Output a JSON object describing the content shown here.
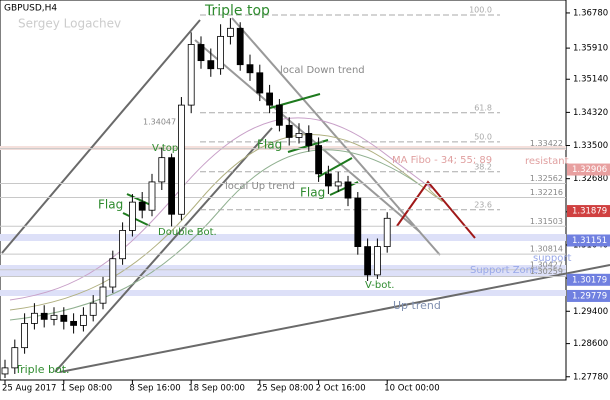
{
  "chart_data": {
    "type": "candlestick",
    "title": "GBPUSD,H4",
    "subtitle": "Sergey Logachev",
    "categories": [
      "25 Aug 2017",
      null,
      null,
      null,
      null,
      null,
      "1 Sep 08:00",
      null,
      null,
      null,
      null,
      null,
      null,
      "8 Sep 16:00",
      null,
      null,
      null,
      null,
      null,
      "18 Sep 00:00",
      null,
      null,
      null,
      null,
      null,
      null,
      "25 Sep 08:00",
      null,
      null,
      null,
      null,
      null,
      "2 Oct 16:00",
      null,
      null,
      null,
      null,
      null,
      null,
      "10 Oct 00:00"
    ],
    "open": [
      1.2785,
      1.28,
      1.285,
      1.291,
      1.2935,
      1.292,
      1.293,
      1.2915,
      1.2905,
      1.293,
      1.296,
      1.3,
      1.307,
      1.314,
      1.321,
      1.319,
      1.326,
      1.332,
      1.318,
      1.345,
      1.36,
      1.356,
      1.354,
      1.362,
      1.364,
      1.355,
      1.353,
      1.348,
      1.345,
      1.34,
      1.337,
      1.338,
      1.335,
      1.328,
      1.325,
      1.326,
      1.322,
      1.31,
      1.303,
      1.31
    ],
    "high": [
      1.282,
      1.287,
      1.2935,
      1.296,
      1.2955,
      1.295,
      1.295,
      1.2935,
      1.295,
      1.298,
      1.3025,
      1.309,
      1.316,
      1.323,
      1.3235,
      1.328,
      1.3345,
      1.333,
      1.347,
      1.363,
      1.362,
      1.359,
      1.365,
      1.3665,
      1.3655,
      1.3575,
      1.355,
      1.35,
      1.3465,
      1.342,
      1.3405,
      1.34,
      1.337,
      1.33,
      1.3285,
      1.3275,
      1.3235,
      1.312,
      1.312,
      1.3185
    ],
    "low": [
      1.2775,
      1.2785,
      1.2835,
      1.2895,
      1.29,
      1.2905,
      1.2895,
      1.2885,
      1.289,
      1.2915,
      1.2945,
      1.2985,
      1.3055,
      1.3125,
      1.317,
      1.3175,
      1.324,
      1.315,
      1.3165,
      1.343,
      1.354,
      1.352,
      1.3525,
      1.36,
      1.3535,
      1.351,
      1.346,
      1.343,
      1.3385,
      1.335,
      1.3355,
      1.3335,
      1.326,
      1.323,
      1.3235,
      1.32,
      1.308,
      1.3015,
      1.302,
      1.3085
    ],
    "close": [
      1.28,
      1.285,
      1.291,
      1.2935,
      1.292,
      1.293,
      1.2915,
      1.2905,
      1.293,
      1.296,
      1.3,
      1.307,
      1.314,
      1.321,
      1.319,
      1.326,
      1.332,
      1.318,
      1.345,
      1.36,
      1.356,
      1.354,
      1.362,
      1.364,
      1.355,
      1.353,
      1.348,
      1.345,
      1.34,
      1.337,
      1.338,
      1.335,
      1.328,
      1.325,
      1.326,
      1.322,
      1.31,
      1.303,
      1.31,
      1.317
    ],
    "ylim": [
      1.277,
      1.371
    ],
    "yticks": [
      {
        "value": 1.3678,
        "label": "1.36780"
      },
      {
        "value": 1.3591,
        "label": "1.35910"
      },
      {
        "value": 1.3514,
        "label": "1.35140"
      },
      {
        "value": 1.3432,
        "label": "1.34320"
      },
      {
        "value": 1.335,
        "label": "1.33500"
      },
      {
        "value": 1.3268,
        "label": "1.32680"
      },
      {
        "value": 1.3186,
        "label": "1.31860"
      },
      {
        "value": 1.3104,
        "label": "1.31040"
      },
      {
        "value": 1.3022,
        "label": "1.30220"
      },
      {
        "value": 1.294,
        "label": "1.29400"
      },
      {
        "value": 1.286,
        "label": "1.28600"
      },
      {
        "value": 1.2778,
        "label": "1.27780"
      }
    ],
    "levels": [
      1.33422,
      1.32562,
      1.32216,
      1.31503,
      1.30814,
      1.30427,
      1.30259
    ],
    "fib_levels": [
      {
        "value": 1.3673,
        "label": "100.0"
      },
      {
        "value": 1.3431,
        "label": "61.8"
      },
      {
        "value": 1.3359,
        "label": "50.0"
      },
      {
        "value": 1.3285,
        "label": "38.2"
      },
      {
        "value": 1.3191,
        "label": "23.6"
      }
    ],
    "price_tags": [
      {
        "value": 1.32906,
        "color": "#e8a0a0"
      },
      {
        "value": 1.31879,
        "color": "#d04040"
      },
      {
        "value": 1.31151,
        "color": "#7080e0"
      },
      {
        "value": 1.30179,
        "color": "#7080e0"
      },
      {
        "value": 1.29779,
        "color": "#7080e0"
      }
    ],
    "annotations": [
      "Triple top",
      "local Down trend",
      "V-top",
      "1.34047",
      "Flag",
      "Flag",
      "Flag",
      "Double Bot.",
      "local Up trend",
      "MA Fibo - 34; 55; 89",
      "resistant",
      "support",
      "Support Zone",
      "V-bot.",
      "Up trend",
      "Triple bot."
    ]
  }
}
